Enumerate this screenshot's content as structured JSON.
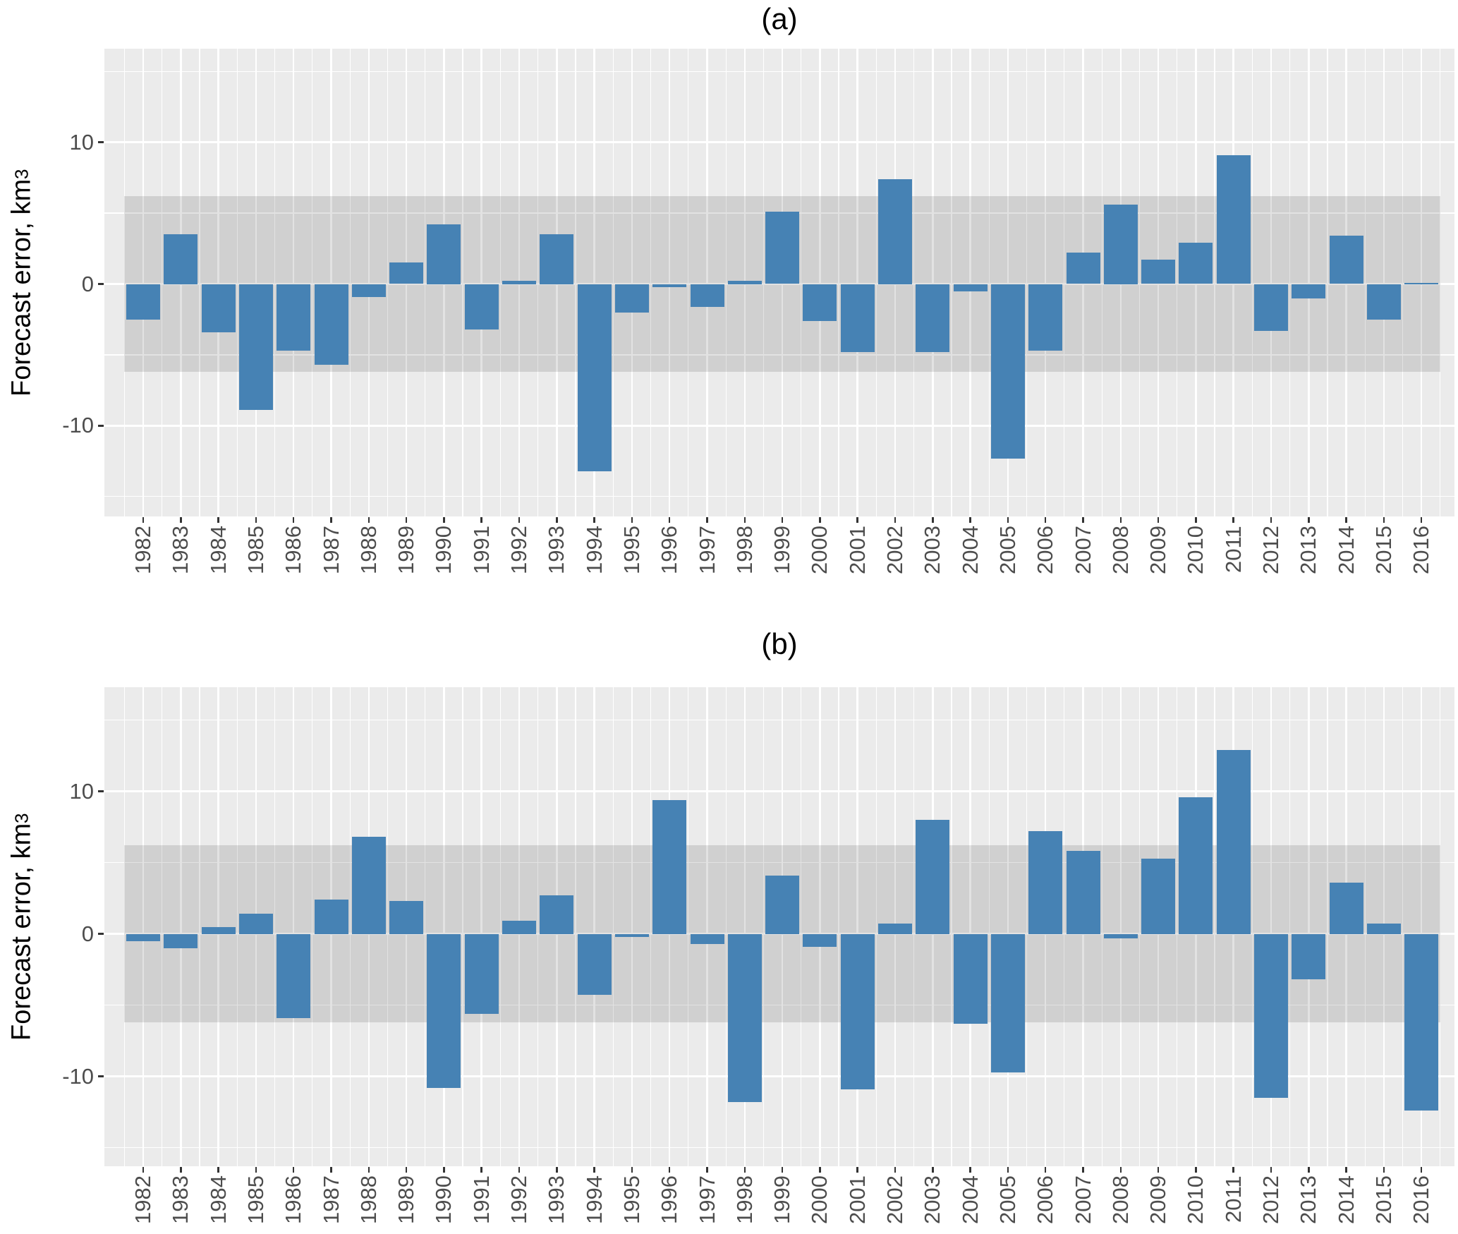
{
  "figure": {
    "background_color": "#FFFFFF",
    "text_color": "#000000",
    "axis_text_color": "#4D4D4D",
    "tick_mark_color": "#333333"
  },
  "panels": [
    {
      "title": "(a)",
      "y_axis_title": {
        "text": "Forecast error, km",
        "superscript": "3"
      }
    },
    {
      "title": "(b)",
      "y_axis_title": {
        "text": "Forecast error, km",
        "superscript": "3"
      }
    }
  ],
  "chart_data": [
    {
      "type": "bar",
      "title": "(a)",
      "ylabel": "Forecast error, km³",
      "xlabel": "",
      "categories": [
        "1982",
        "1983",
        "1984",
        "1985",
        "1986",
        "1987",
        "1988",
        "1989",
        "1990",
        "1991",
        "1992",
        "1993",
        "1994",
        "1995",
        "1996",
        "1997",
        "1998",
        "1999",
        "2000",
        "2001",
        "2002",
        "2003",
        "2004",
        "2005",
        "2006",
        "2007",
        "2008",
        "2009",
        "2010",
        "2011",
        "2012",
        "2013",
        "2014",
        "2015",
        "2016"
      ],
      "values": [
        -2.5,
        3.5,
        -3.4,
        -8.9,
        -4.7,
        -5.7,
        -0.9,
        1.5,
        4.2,
        -3.2,
        0.2,
        3.5,
        -13.2,
        -2.0,
        -0.2,
        -1.6,
        0.2,
        5.1,
        -2.6,
        -4.8,
        7.4,
        -4.8,
        -0.5,
        -12.3,
        -4.7,
        2.2,
        5.6,
        1.7,
        2.9,
        9.1,
        -3.3,
        -1.0,
        3.4,
        -2.5,
        0.1
      ],
      "yticks": [
        10,
        0,
        -10
      ],
      "minor_yticks": [
        15,
        5,
        -5,
        -15
      ],
      "ylim": [
        -16.4,
        16.6
      ],
      "band": {
        "low": -6.2,
        "high": 6.2,
        "color": "#D0D0D0",
        "overlay_rgba": "rgba(0,0,0,0.115)"
      },
      "bar_color": "#4682B4",
      "panel_background": "#EBEBEB",
      "gridline_color": "#FFFFFF",
      "grid": true,
      "legend": "none"
    },
    {
      "type": "bar",
      "title": "(b)",
      "ylabel": "Forecast error, km³",
      "xlabel": "",
      "categories": [
        "1982",
        "1983",
        "1984",
        "1985",
        "1986",
        "1987",
        "1988",
        "1989",
        "1990",
        "1991",
        "1992",
        "1993",
        "1994",
        "1995",
        "1996",
        "1997",
        "1998",
        "1999",
        "2000",
        "2001",
        "2002",
        "2003",
        "2004",
        "2005",
        "2006",
        "2007",
        "2008",
        "2009",
        "2010",
        "2011",
        "2012",
        "2013",
        "2014",
        "2015",
        "2016"
      ],
      "values": [
        -0.5,
        -1.0,
        0.5,
        1.4,
        -5.9,
        2.4,
        6.8,
        2.3,
        -10.8,
        -5.6,
        0.9,
        2.7,
        -4.3,
        -0.2,
        9.4,
        -0.7,
        -11.8,
        4.1,
        -0.9,
        -10.9,
        0.7,
        8.0,
        -6.3,
        -9.7,
        7.2,
        5.8,
        -0.3,
        5.3,
        9.6,
        12.9,
        -11.5,
        -3.2,
        3.6,
        0.7,
        -12.4
      ],
      "yticks": [
        10,
        0,
        -10
      ],
      "minor_yticks": [
        15,
        5,
        -5,
        -15
      ],
      "ylim": [
        -16.3,
        17.3
      ],
      "band": {
        "low": -6.2,
        "high": 6.2,
        "color": "#D0D0D0",
        "overlay_rgba": "rgba(0,0,0,0.115)"
      },
      "bar_color": "#4682B4",
      "panel_background": "#EBEBEB",
      "gridline_color": "#FFFFFF",
      "grid": true,
      "legend": "none"
    }
  ]
}
